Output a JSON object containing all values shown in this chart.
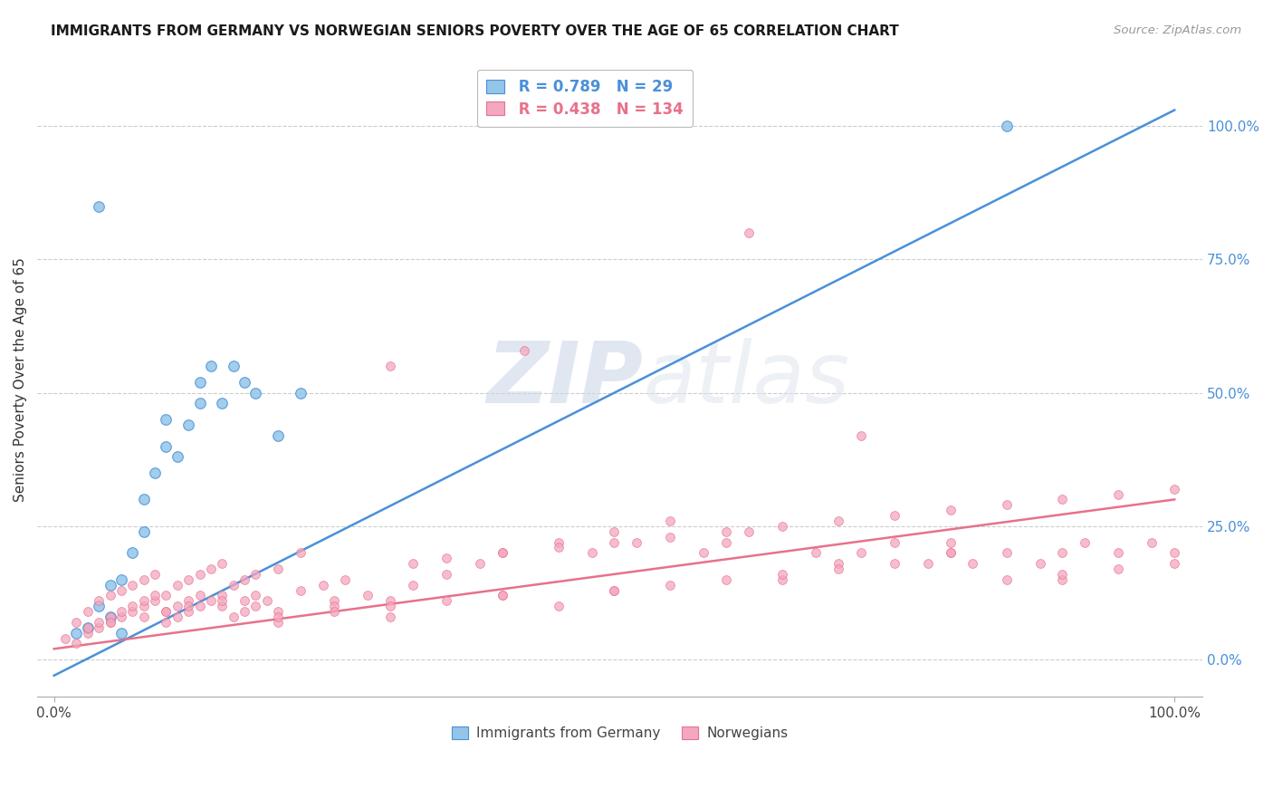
{
  "title": "IMMIGRANTS FROM GERMANY VS NORWEGIAN SENIORS POVERTY OVER THE AGE OF 65 CORRELATION CHART",
  "source": "Source: ZipAtlas.com",
  "ylabel": "Seniors Poverty Over the Age of 65",
  "watermark_zip": "ZIP",
  "watermark_atlas": "atlas",
  "blue_R": 0.789,
  "blue_N": 29,
  "pink_R": 0.438,
  "pink_N": 134,
  "blue_color": "#92C5E8",
  "pink_color": "#F4A7C0",
  "blue_line_color": "#4A90D9",
  "pink_line_color": "#E8718A",
  "legend_blue": "Immigrants from Germany",
  "legend_pink": "Norwegians",
  "right_yticks": [
    "100.0%",
    "75.0%",
    "50.0%",
    "25.0%",
    "0.0%"
  ],
  "right_ytick_vals": [
    1.0,
    0.75,
    0.5,
    0.25,
    0.0
  ],
  "blue_scatter_x": [
    0.04,
    0.02,
    0.03,
    0.04,
    0.05,
    0.05,
    0.06,
    0.06,
    0.07,
    0.08,
    0.08,
    0.09,
    0.1,
    0.1,
    0.11,
    0.12,
    0.13,
    0.13,
    0.14,
    0.15,
    0.16,
    0.17,
    0.18,
    0.2,
    0.22,
    0.85
  ],
  "blue_scatter_y": [
    0.85,
    0.05,
    0.06,
    0.1,
    0.08,
    0.14,
    0.05,
    0.15,
    0.2,
    0.24,
    0.3,
    0.35,
    0.4,
    0.45,
    0.38,
    0.44,
    0.48,
    0.52,
    0.55,
    0.48,
    0.55,
    0.52,
    0.5,
    0.42,
    0.5,
    1.0
  ],
  "pink_scatter_x": [
    0.01,
    0.02,
    0.02,
    0.03,
    0.03,
    0.04,
    0.04,
    0.05,
    0.05,
    0.06,
    0.06,
    0.07,
    0.07,
    0.08,
    0.08,
    0.09,
    0.09,
    0.1,
    0.1,
    0.11,
    0.11,
    0.12,
    0.12,
    0.13,
    0.13,
    0.14,
    0.14,
    0.15,
    0.15,
    0.16,
    0.16,
    0.17,
    0.17,
    0.18,
    0.18,
    0.19,
    0.2,
    0.2,
    0.22,
    0.22,
    0.24,
    0.25,
    0.26,
    0.28,
    0.3,
    0.3,
    0.32,
    0.35,
    0.38,
    0.4,
    0.42,
    0.45,
    0.48,
    0.5,
    0.52,
    0.55,
    0.58,
    0.6,
    0.62,
    0.65,
    0.68,
    0.7,
    0.72,
    0.75,
    0.78,
    0.8,
    0.82,
    0.85,
    0.88,
    0.9,
    0.92,
    0.95,
    0.98,
    1.0,
    0.03,
    0.04,
    0.05,
    0.06,
    0.07,
    0.08,
    0.09,
    0.1,
    0.11,
    0.12,
    0.13,
    0.15,
    0.17,
    0.2,
    0.25,
    0.3,
    0.4,
    0.5,
    0.62,
    0.72,
    0.8,
    0.9,
    0.32,
    0.35,
    0.4,
    0.45,
    0.5,
    0.55,
    0.6,
    0.65,
    0.7,
    0.75,
    0.8,
    0.85,
    0.9,
    0.95,
    1.0,
    0.05,
    0.08,
    0.1,
    0.12,
    0.15,
    0.18,
    0.2,
    0.25,
    0.3,
    0.35,
    0.4,
    0.45,
    0.5,
    0.55,
    0.6,
    0.65,
    0.7,
    0.75,
    0.8,
    0.85,
    0.9,
    0.95,
    1.0
  ],
  "pink_scatter_y": [
    0.04,
    0.03,
    0.07,
    0.05,
    0.09,
    0.06,
    0.11,
    0.07,
    0.12,
    0.08,
    0.13,
    0.09,
    0.14,
    0.1,
    0.15,
    0.11,
    0.16,
    0.07,
    0.12,
    0.08,
    0.14,
    0.09,
    0.15,
    0.1,
    0.16,
    0.11,
    0.17,
    0.12,
    0.18,
    0.08,
    0.14,
    0.09,
    0.15,
    0.1,
    0.16,
    0.11,
    0.07,
    0.17,
    0.13,
    0.2,
    0.14,
    0.11,
    0.15,
    0.12,
    0.08,
    0.55,
    0.14,
    0.16,
    0.18,
    0.2,
    0.58,
    0.22,
    0.2,
    0.24,
    0.22,
    0.26,
    0.2,
    0.22,
    0.24,
    0.15,
    0.2,
    0.18,
    0.2,
    0.22,
    0.18,
    0.2,
    0.18,
    0.2,
    0.18,
    0.2,
    0.22,
    0.2,
    0.22,
    0.2,
    0.06,
    0.07,
    0.08,
    0.09,
    0.1,
    0.11,
    0.12,
    0.09,
    0.1,
    0.11,
    0.12,
    0.1,
    0.11,
    0.09,
    0.1,
    0.11,
    0.12,
    0.13,
    0.8,
    0.42,
    0.22,
    0.15,
    0.18,
    0.19,
    0.2,
    0.21,
    0.22,
    0.23,
    0.24,
    0.25,
    0.26,
    0.27,
    0.28,
    0.29,
    0.3,
    0.31,
    0.32,
    0.07,
    0.08,
    0.09,
    0.1,
    0.11,
    0.12,
    0.08,
    0.09,
    0.1,
    0.11,
    0.12,
    0.1,
    0.13,
    0.14,
    0.15,
    0.16,
    0.17,
    0.18,
    0.2,
    0.15,
    0.16,
    0.17,
    0.18
  ]
}
